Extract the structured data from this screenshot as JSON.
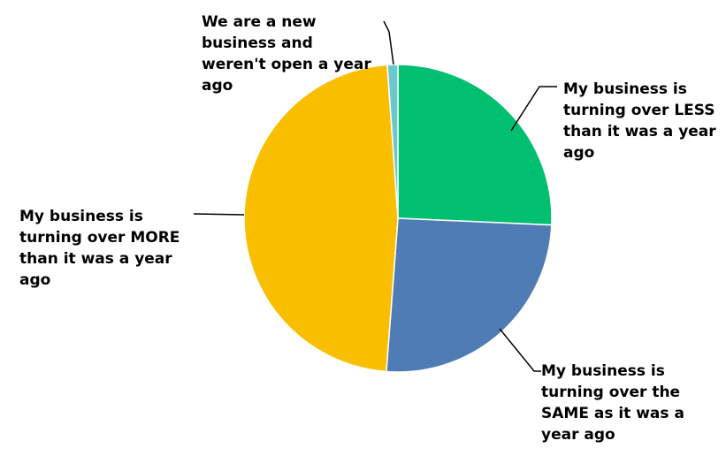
{
  "chart_data": {
    "type": "pie",
    "title": "",
    "slices": [
      {
        "label": "My business is\nturning over LESS\nthan it was a year\nago",
        "value": 25.7,
        "color": "#00bf6f"
      },
      {
        "label": "My business is\nturning over the\nSAME as it was a\nyear ago",
        "value": 25.5,
        "color": "#507cb6"
      },
      {
        "label": "My business is\nturning over MORE\nthan it was a year\nago",
        "value": 47.7,
        "color": "#f9be00"
      },
      {
        "label": "We are a new\nbusiness and\nweren't open a year\nago",
        "value": 1.1,
        "color": "#6bc8cd"
      }
    ]
  }
}
